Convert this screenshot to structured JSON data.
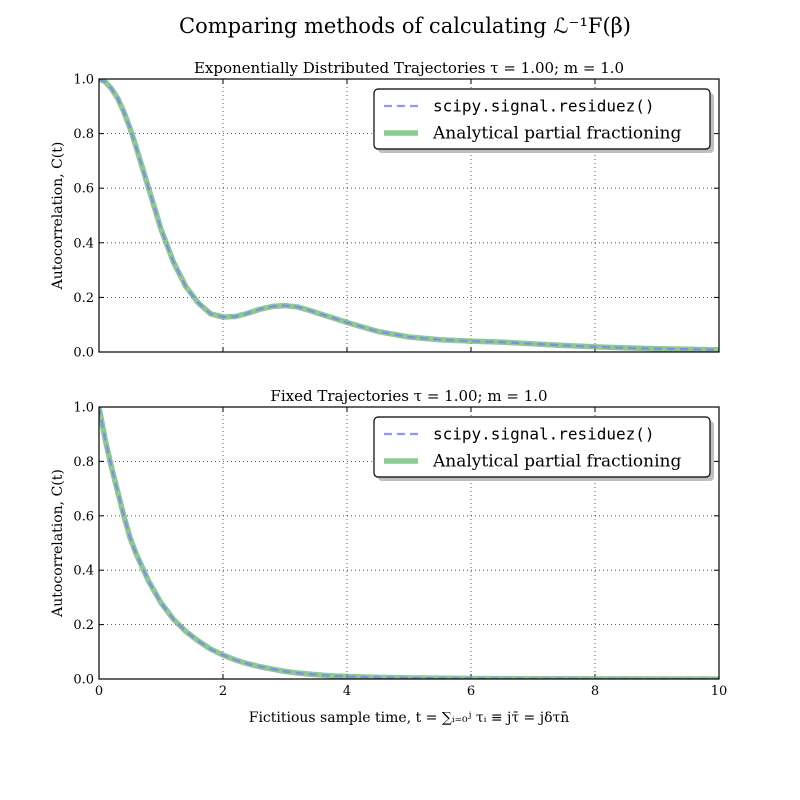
{
  "figure": {
    "suptitle": "Comparing methods of calculating ℒ⁻¹F(β)",
    "xlabel": "Fictitious sample time, t = ∑ᵢ₌₀ʲ τᵢ ≡ jτ̄ = jδτn̄"
  },
  "chart_data": [
    {
      "type": "line",
      "title": "Exponentially Distributed Trajectories τ = 1.00; m = 1.0",
      "xlabel": "",
      "ylabel": "Autocorrelation, C(t)",
      "xlim": [
        0,
        10
      ],
      "ylim": [
        0,
        1.0
      ],
      "xticks": [
        0,
        2,
        4,
        6,
        8,
        10
      ],
      "yticks": [
        0.0,
        0.2,
        0.4,
        0.6,
        0.8,
        1.0
      ],
      "xtick_labels_visible": false,
      "grid": true,
      "legend": "top-right",
      "series": [
        {
          "name": "scipy.signal.residuez()",
          "color": "#8080ff",
          "style": "dashed",
          "x": [
            0,
            0.1,
            0.2,
            0.3,
            0.4,
            0.5,
            0.6,
            0.8,
            1.0,
            1.2,
            1.4,
            1.6,
            1.8,
            2.0,
            2.2,
            2.4,
            2.6,
            2.8,
            3.0,
            3.2,
            3.4,
            3.6,
            3.8,
            4.0,
            4.5,
            5.0,
            5.5,
            6.0,
            6.5,
            7.0,
            7.5,
            8.0,
            8.5,
            9.0,
            9.5,
            10.0
          ],
          "y": [
            1.0,
            0.99,
            0.965,
            0.93,
            0.88,
            0.82,
            0.75,
            0.6,
            0.45,
            0.33,
            0.24,
            0.18,
            0.14,
            0.128,
            0.13,
            0.142,
            0.157,
            0.167,
            0.17,
            0.165,
            0.152,
            0.137,
            0.123,
            0.108,
            0.075,
            0.055,
            0.045,
            0.04,
            0.036,
            0.03,
            0.024,
            0.019,
            0.015,
            0.012,
            0.01,
            0.008
          ]
        },
        {
          "name": "Analytical partial fractioning",
          "color": "#66b86a",
          "style": "solid",
          "x": [
            0,
            0.1,
            0.2,
            0.3,
            0.4,
            0.5,
            0.6,
            0.8,
            1.0,
            1.2,
            1.4,
            1.6,
            1.8,
            2.0,
            2.2,
            2.4,
            2.6,
            2.8,
            3.0,
            3.2,
            3.4,
            3.6,
            3.8,
            4.0,
            4.5,
            5.0,
            5.5,
            6.0,
            6.5,
            7.0,
            7.5,
            8.0,
            8.5,
            9.0,
            9.5,
            10.0
          ],
          "y": [
            1.0,
            0.99,
            0.965,
            0.93,
            0.88,
            0.82,
            0.75,
            0.6,
            0.45,
            0.33,
            0.24,
            0.18,
            0.14,
            0.128,
            0.13,
            0.142,
            0.157,
            0.167,
            0.17,
            0.165,
            0.152,
            0.137,
            0.123,
            0.108,
            0.075,
            0.055,
            0.045,
            0.04,
            0.036,
            0.03,
            0.024,
            0.019,
            0.015,
            0.012,
            0.01,
            0.008
          ]
        }
      ]
    },
    {
      "type": "line",
      "title": "Fixed Trajectories τ = 1.00; m = 1.0",
      "xlabel": "",
      "ylabel": "Autocorrelation, C(t)",
      "xlim": [
        0,
        10
      ],
      "ylim": [
        0,
        1.0
      ],
      "xticks": [
        0,
        2,
        4,
        6,
        8,
        10
      ],
      "yticks": [
        0.0,
        0.2,
        0.4,
        0.6,
        0.8,
        1.0
      ],
      "xtick_labels_visible": true,
      "grid": true,
      "legend": "top-right",
      "series": [
        {
          "name": "scipy.signal.residuez()",
          "color": "#8080ff",
          "style": "dashed",
          "x": [
            0,
            0.1,
            0.2,
            0.3,
            0.4,
            0.5,
            0.6,
            0.8,
            1.0,
            1.2,
            1.4,
            1.6,
            1.8,
            2.0,
            2.2,
            2.4,
            2.6,
            2.8,
            3.0,
            3.2,
            3.4,
            3.6,
            3.8,
            4.0,
            4.5,
            5.0,
            5.5,
            6.0,
            6.5,
            7.0,
            7.5,
            8.0,
            8.5,
            9.0,
            9.5,
            10.0
          ],
          "y": [
            1.0,
            0.88,
            0.78,
            0.69,
            0.6,
            0.52,
            0.46,
            0.36,
            0.28,
            0.22,
            0.175,
            0.14,
            0.11,
            0.088,
            0.07,
            0.056,
            0.045,
            0.036,
            0.028,
            0.022,
            0.018,
            0.014,
            0.011,
            0.009,
            0.006,
            0.004,
            0.003,
            0.002,
            0.0015,
            0.001,
            0.001,
            0.0005,
            0.0005,
            0.0,
            0.0,
            0.0
          ]
        },
        {
          "name": "Analytical partial fractioning",
          "color": "#66b86a",
          "style": "solid",
          "x": [
            0,
            0.1,
            0.2,
            0.3,
            0.4,
            0.5,
            0.6,
            0.8,
            1.0,
            1.2,
            1.4,
            1.6,
            1.8,
            2.0,
            2.2,
            2.4,
            2.6,
            2.8,
            3.0,
            3.2,
            3.4,
            3.6,
            3.8,
            4.0,
            4.5,
            5.0,
            5.5,
            6.0,
            6.5,
            7.0,
            7.5,
            8.0,
            8.5,
            9.0,
            9.5,
            10.0
          ],
          "y": [
            1.0,
            0.88,
            0.78,
            0.69,
            0.6,
            0.52,
            0.46,
            0.36,
            0.28,
            0.22,
            0.175,
            0.14,
            0.11,
            0.088,
            0.07,
            0.056,
            0.045,
            0.036,
            0.028,
            0.022,
            0.018,
            0.014,
            0.011,
            0.009,
            0.006,
            0.004,
            0.003,
            0.002,
            0.0015,
            0.001,
            0.001,
            0.0005,
            0.0005,
            0.0,
            0.0,
            0.0
          ]
        }
      ]
    }
  ]
}
